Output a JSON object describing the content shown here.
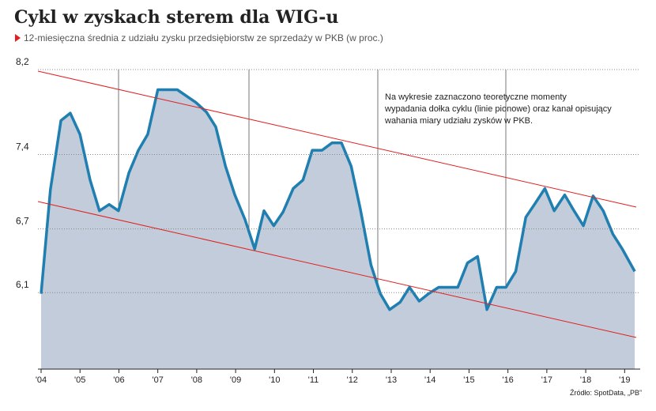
{
  "chart_data": {
    "type": "area",
    "title": "Cykl w zyskach sterem dla WIG-u",
    "subtitle": "12-miesięczna średnia z udziału zysku przedsiębiorstw ze sprzedaży w PKB (w proc.)",
    "annotation": [
      "Na wykresie zaznaczono teoretyczne momenty",
      "wypadania dołka cyklu (linie pionowe) oraz kanał opisujący",
      "wahania miary udziału zysków w PKB."
    ],
    "source": "Źródło: SpotData, „PB”",
    "x": [
      2004,
      2004.24,
      2004.51,
      2004.75,
      2005,
      2005.26,
      2005.5,
      2005.75,
      2005.99,
      2006.26,
      2006.5,
      2006.74,
      2007,
      2007.5,
      2007.98,
      2008.25,
      2008.49,
      2008.74,
      2008.98,
      2009.24,
      2009.49,
      2009.73,
      2009.98,
      2010.22,
      2010.48,
      2010.73,
      2010.97,
      2011.22,
      2011.48,
      2011.72,
      2011.97,
      2012.21,
      2012.48,
      2012.72,
      2012.96,
      2013.23,
      2013.47,
      2013.72,
      2013.96,
      2014.22,
      2014.47,
      2014.71,
      2014.96,
      2015.22,
      2015.46,
      2015.71,
      2015.95,
      2016.2,
      2016.46,
      2016.7,
      2016.95,
      2017.19,
      2017.46,
      2017.7,
      2017.94,
      2018.19,
      2018.45,
      2018.7,
      2018.94,
      2019.26
    ],
    "series": [
      {
        "name": "udział zysku w PKB",
        "color": "#1f7fb0",
        "fill": "#c3ccda",
        "values": [
          6.09,
          7.07,
          7.72,
          7.79,
          7.59,
          7.16,
          6.87,
          6.93,
          6.87,
          7.23,
          7.44,
          7.59,
          8.01,
          8.01,
          7.89,
          7.8,
          7.66,
          7.29,
          7.02,
          6.79,
          6.51,
          6.87,
          6.73,
          6.86,
          7.08,
          7.16,
          7.44,
          7.44,
          7.51,
          7.51,
          7.29,
          6.88,
          6.36,
          6.09,
          5.94,
          6.01,
          6.15,
          6.02,
          6.09,
          6.15,
          6.15,
          6.15,
          6.38,
          6.44,
          5.94,
          6.15,
          6.15,
          6.3,
          6.81,
          6.94,
          7.08,
          6.87,
          7.02,
          6.87,
          6.73,
          7.01,
          6.87,
          6.65,
          6.51,
          6.3
        ]
      }
    ],
    "xlim": [
      2004,
      2019.4
    ],
    "xticks": [
      {
        "value": 2004,
        "label": "'04"
      },
      {
        "value": 2005,
        "label": "'05"
      },
      {
        "value": 2006,
        "label": "'06"
      },
      {
        "value": 2007,
        "label": "'07"
      },
      {
        "value": 2008,
        "label": "'08"
      },
      {
        "value": 2009,
        "label": "'09"
      },
      {
        "value": 2010,
        "label": "'10"
      },
      {
        "value": 2011,
        "label": "'11"
      },
      {
        "value": 2012,
        "label": "'12"
      },
      {
        "value": 2013,
        "label": "'13"
      },
      {
        "value": 2014,
        "label": "'14"
      },
      {
        "value": 2015,
        "label": "'15"
      },
      {
        "value": 2016,
        "label": "'16"
      },
      {
        "value": 2017,
        "label": "'17"
      },
      {
        "value": 2018,
        "label": "'18"
      },
      {
        "value": 2019,
        "label": "'19"
      }
    ],
    "ylim": [
      5.38,
      8.2
    ],
    "yticks": [
      {
        "value": 6.1,
        "label": "6,1"
      },
      {
        "value": 6.7,
        "label": "6,7"
      },
      {
        "value": 7.4,
        "label": "7,4"
      },
      {
        "value": 8.2,
        "label": "8,2"
      }
    ],
    "grid": true
  }
}
